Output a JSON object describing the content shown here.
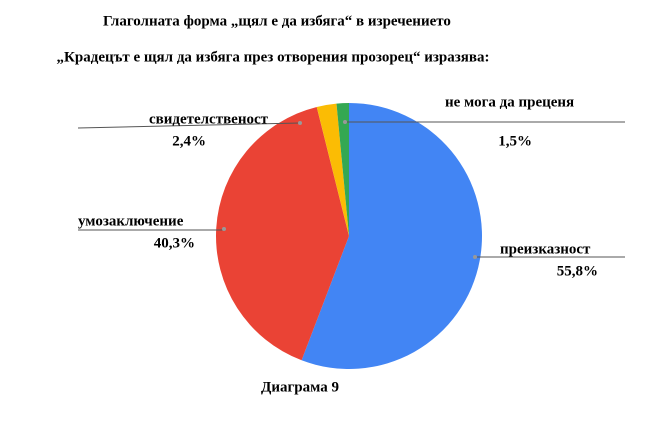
{
  "chart_data": {
    "type": "pie",
    "title": "Глаголната форма „щял е да избяга“ в изречението",
    "subtitle": "„Крадецът е щял да избяга през отворения прозорец“ изразява:",
    "caption": "Диаграма 9",
    "categories": [
      "преизказност",
      "умозаключение",
      "свидетелственост",
      "не мога да преценя"
    ],
    "values": [
      55.8,
      40.3,
      2.4,
      1.5
    ],
    "value_labels": [
      "55,8%",
      "40,3%",
      "2,4%",
      "1,5%"
    ],
    "colors": [
      "#4285f4",
      "#ea4335",
      "#fbbc04",
      "#34a853"
    ]
  }
}
